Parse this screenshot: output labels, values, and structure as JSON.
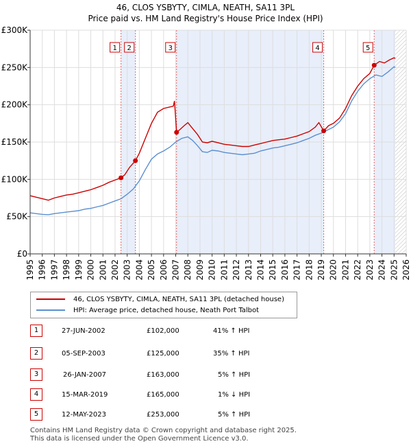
{
  "chart_data": {
    "type": "line",
    "title": "46, CLOS YSBYTY, CIMLA, NEATH, SA11 3PL",
    "subtitle": "Price paid vs. HM Land Registry's House Price Index (HPI)",
    "xlim": [
      1995,
      2026
    ],
    "ylim": [
      0,
      300000
    ],
    "x_ticks": [
      "1995",
      "1996",
      "1997",
      "1998",
      "1999",
      "2000",
      "2001",
      "2002",
      "2003",
      "2004",
      "2005",
      "2006",
      "2007",
      "2008",
      "2009",
      "2010",
      "2011",
      "2012",
      "2013",
      "2014",
      "2015",
      "2016",
      "2017",
      "2018",
      "2019",
      "2020",
      "2021",
      "2022",
      "2023",
      "2024",
      "2025",
      "2026"
    ],
    "y_ticks": [
      {
        "value": 0,
        "label": "£0"
      },
      {
        "value": 50000,
        "label": "£50K"
      },
      {
        "value": 100000,
        "label": "£100K"
      },
      {
        "value": 150000,
        "label": "£150K"
      },
      {
        "value": 200000,
        "label": "£200K"
      },
      {
        "value": 250000,
        "label": "£250K"
      },
      {
        "value": 300000,
        "label": "£300K"
      }
    ],
    "series": [
      {
        "name": "46, CLOS YSBYTY, CIMLA, NEATH, SA11 3PL (detached house)",
        "color": "#cc0000",
        "points": [
          [
            1995.0,
            78000
          ],
          [
            1995.5,
            76000
          ],
          [
            1996.0,
            74000
          ],
          [
            1996.5,
            72000
          ],
          [
            1997.0,
            75000
          ],
          [
            1997.5,
            77000
          ],
          [
            1998.0,
            79000
          ],
          [
            1998.5,
            80000
          ],
          [
            1999.0,
            82000
          ],
          [
            1999.5,
            84000
          ],
          [
            2000.0,
            86000
          ],
          [
            2000.5,
            89000
          ],
          [
            2001.0,
            92000
          ],
          [
            2001.5,
            96000
          ],
          [
            2002.0,
            99000
          ],
          [
            2002.49,
            102000
          ],
          [
            2002.8,
            106000
          ],
          [
            2003.2,
            116000
          ],
          [
            2003.68,
            125000
          ],
          [
            2004.0,
            135000
          ],
          [
            2004.5,
            155000
          ],
          [
            2005.0,
            175000
          ],
          [
            2005.5,
            190000
          ],
          [
            2006.0,
            195000
          ],
          [
            2006.5,
            197000
          ],
          [
            2006.8,
            198000
          ],
          [
            2006.9,
            205000
          ],
          [
            2007.07,
            163000
          ],
          [
            2007.3,
            166000
          ],
          [
            2007.7,
            172000
          ],
          [
            2008.0,
            176000
          ],
          [
            2008.4,
            168000
          ],
          [
            2008.8,
            160000
          ],
          [
            2009.2,
            150000
          ],
          [
            2009.6,
            149000
          ],
          [
            2010.0,
            151000
          ],
          [
            2010.5,
            149000
          ],
          [
            2011.0,
            147000
          ],
          [
            2011.5,
            146000
          ],
          [
            2012.0,
            145000
          ],
          [
            2012.5,
            144000
          ],
          [
            2013.0,
            144000
          ],
          [
            2013.5,
            146000
          ],
          [
            2014.0,
            148000
          ],
          [
            2014.5,
            150000
          ],
          [
            2015.0,
            152000
          ],
          [
            2015.5,
            153000
          ],
          [
            2016.0,
            154000
          ],
          [
            2016.5,
            156000
          ],
          [
            2017.0,
            158000
          ],
          [
            2017.5,
            161000
          ],
          [
            2018.0,
            164000
          ],
          [
            2018.5,
            170000
          ],
          [
            2018.8,
            176000
          ],
          [
            2019.2,
            165000
          ],
          [
            2019.6,
            172000
          ],
          [
            2020.0,
            175000
          ],
          [
            2020.5,
            182000
          ],
          [
            2021.0,
            195000
          ],
          [
            2021.5,
            212000
          ],
          [
            2022.0,
            225000
          ],
          [
            2022.5,
            235000
          ],
          [
            2023.0,
            242000
          ],
          [
            2023.36,
            253000
          ],
          [
            2023.8,
            258000
          ],
          [
            2024.2,
            256000
          ],
          [
            2024.6,
            260000
          ],
          [
            2025.0,
            263000
          ],
          [
            2025.1,
            262000
          ]
        ]
      },
      {
        "name": "HPI: Average price, detached house, Neath Port Talbot",
        "color": "#5a8fd0",
        "points": [
          [
            1995.0,
            55000
          ],
          [
            1995.5,
            54000
          ],
          [
            1996.0,
            53000
          ],
          [
            1996.5,
            52500
          ],
          [
            1997.0,
            54000
          ],
          [
            1997.5,
            55000
          ],
          [
            1998.0,
            56000
          ],
          [
            1998.5,
            57000
          ],
          [
            1999.0,
            58000
          ],
          [
            1999.5,
            60000
          ],
          [
            2000.0,
            61000
          ],
          [
            2000.5,
            63000
          ],
          [
            2001.0,
            65000
          ],
          [
            2001.5,
            68000
          ],
          [
            2002.0,
            71000
          ],
          [
            2002.5,
            74000
          ],
          [
            2003.0,
            80000
          ],
          [
            2003.5,
            87000
          ],
          [
            2004.0,
            98000
          ],
          [
            2004.5,
            113000
          ],
          [
            2005.0,
            127000
          ],
          [
            2005.5,
            134000
          ],
          [
            2006.0,
            138000
          ],
          [
            2006.5,
            143000
          ],
          [
            2007.0,
            150000
          ],
          [
            2007.5,
            155000
          ],
          [
            2008.0,
            157000
          ],
          [
            2008.4,
            152000
          ],
          [
            2008.8,
            145000
          ],
          [
            2009.2,
            137000
          ],
          [
            2009.6,
            136000
          ],
          [
            2010.0,
            139000
          ],
          [
            2010.5,
            138000
          ],
          [
            2011.0,
            136000
          ],
          [
            2011.5,
            135000
          ],
          [
            2012.0,
            134000
          ],
          [
            2012.5,
            133000
          ],
          [
            2013.0,
            134000
          ],
          [
            2013.5,
            135000
          ],
          [
            2014.0,
            138000
          ],
          [
            2014.5,
            140000
          ],
          [
            2015.0,
            142000
          ],
          [
            2015.5,
            143000
          ],
          [
            2016.0,
            145000
          ],
          [
            2016.5,
            147000
          ],
          [
            2017.0,
            149000
          ],
          [
            2017.5,
            152000
          ],
          [
            2018.0,
            155000
          ],
          [
            2018.5,
            159000
          ],
          [
            2019.0,
            162000
          ],
          [
            2019.5,
            166000
          ],
          [
            2020.0,
            170000
          ],
          [
            2020.5,
            177000
          ],
          [
            2021.0,
            188000
          ],
          [
            2021.5,
            205000
          ],
          [
            2022.0,
            218000
          ],
          [
            2022.5,
            228000
          ],
          [
            2023.0,
            235000
          ],
          [
            2023.5,
            240000
          ],
          [
            2024.0,
            238000
          ],
          [
            2024.5,
            244000
          ],
          [
            2025.0,
            251000
          ],
          [
            2025.1,
            250000
          ]
        ]
      }
    ],
    "sales": [
      {
        "num": "1",
        "year": 2002.49,
        "price": 102000
      },
      {
        "num": "2",
        "year": 2003.68,
        "price": 125000
      },
      {
        "num": "3",
        "year": 2007.07,
        "price": 163000
      },
      {
        "num": "4",
        "year": 2019.2,
        "price": 165000
      },
      {
        "num": "5",
        "year": 2023.36,
        "price": 253000
      }
    ],
    "shaded_ranges": [
      [
        2002.49,
        2003.68
      ],
      [
        2007.07,
        2019.2
      ],
      [
        2023.36,
        2025.1
      ]
    ],
    "hatch_from": 2025.1
  },
  "legend": {
    "sales_label": "46, CLOS YSBYTY, CIMLA, NEATH, SA11 3PL (detached house)",
    "hpi_label": "HPI: Average price, detached house, Neath Port Talbot"
  },
  "table": [
    {
      "num": "1",
      "date": "27-JUN-2002",
      "price": "£102,000",
      "hpi": "41% ↑ HPI"
    },
    {
      "num": "2",
      "date": "05-SEP-2003",
      "price": "£125,000",
      "hpi": "35% ↑ HPI"
    },
    {
      "num": "3",
      "date": "26-JAN-2007",
      "price": "£163,000",
      "hpi": "5% ↑ HPI"
    },
    {
      "num": "4",
      "date": "15-MAR-2019",
      "price": "£165,000",
      "hpi": "1% ↓ HPI"
    },
    {
      "num": "5",
      "date": "12-MAY-2023",
      "price": "£253,000",
      "hpi": "5% ↑ HPI"
    }
  ],
  "footer": {
    "line1": "Contains HM Land Registry data © Crown copyright and database right 2025.",
    "line2": "This data is licensed under the Open Government Licence v3.0."
  }
}
